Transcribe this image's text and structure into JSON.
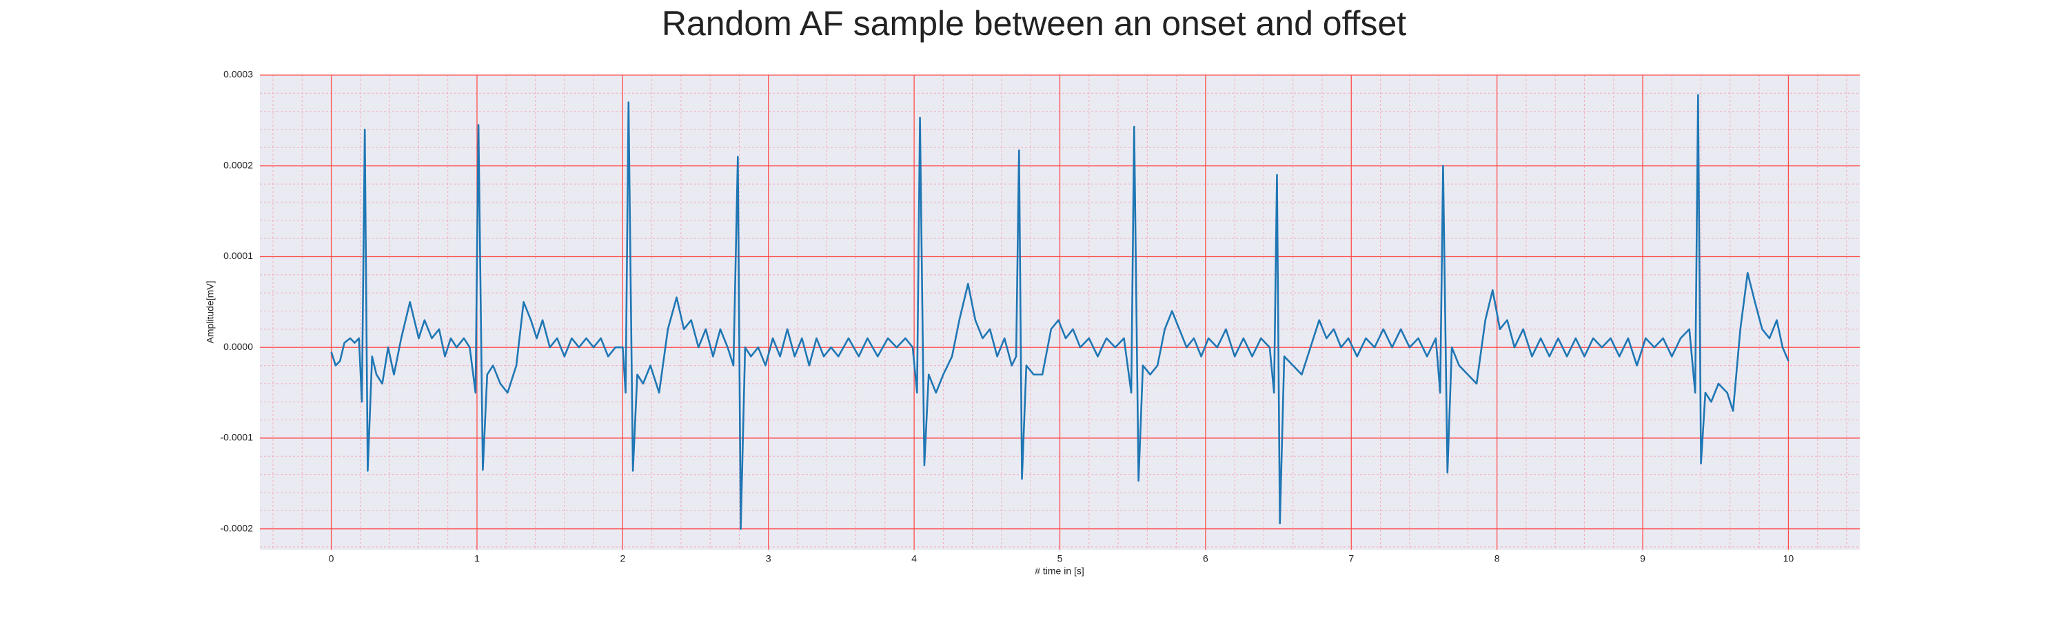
{
  "chart_data": {
    "type": "line",
    "title": "Random AF sample between an onset and offset",
    "xlabel": "# time in [s]",
    "ylabel": "Amplitude[mV]",
    "color": "#1f77b4",
    "background": "#eaeaf2",
    "grid": true,
    "grid_color": "#ff4d4d",
    "minor_grid": true,
    "minor_grid_color": "#f4a0b0",
    "xlim": [
      -0.49,
      10.49
    ],
    "xticks": [
      0,
      1,
      2,
      3,
      4,
      5,
      6,
      7,
      8,
      9,
      10
    ],
    "ylim": [
      -0.000223,
      0.0003
    ],
    "yticks": [
      -0.0002,
      -0.0001,
      {
        "value": 0,
        "label": "0.0000"
      },
      0.0001,
      0.0002,
      0.0003
    ],
    "x": [
      0.0,
      0.03,
      0.06,
      0.09,
      0.13,
      0.16,
      0.19,
      0.21,
      0.23,
      0.25,
      0.28,
      0.31,
      0.35,
      0.39,
      0.43,
      0.48,
      0.54,
      0.6,
      0.64,
      0.69,
      0.74,
      0.78,
      0.82,
      0.86,
      0.91,
      0.95,
      0.99,
      1.01,
      1.04,
      1.07,
      1.11,
      1.16,
      1.21,
      1.27,
      1.32,
      1.37,
      1.41,
      1.45,
      1.5,
      1.55,
      1.6,
      1.65,
      1.7,
      1.75,
      1.8,
      1.85,
      1.9,
      1.95,
      2.0,
      2.02,
      2.04,
      2.07,
      2.1,
      2.14,
      2.19,
      2.25,
      2.31,
      2.37,
      2.42,
      2.47,
      2.52,
      2.57,
      2.62,
      2.67,
      2.72,
      2.76,
      2.79,
      2.81,
      2.84,
      2.88,
      2.93,
      2.98,
      3.03,
      3.08,
      3.13,
      3.18,
      3.23,
      3.28,
      3.33,
      3.38,
      3.43,
      3.48,
      3.55,
      3.62,
      3.68,
      3.75,
      3.82,
      3.88,
      3.94,
      3.99,
      4.02,
      4.04,
      4.07,
      4.1,
      4.15,
      4.2,
      4.26,
      4.31,
      4.37,
      4.42,
      4.47,
      4.52,
      4.57,
      4.62,
      4.67,
      4.7,
      4.72,
      4.74,
      4.77,
      4.82,
      4.88,
      4.94,
      4.99,
      5.04,
      5.09,
      5.14,
      5.2,
      5.26,
      5.32,
      5.38,
      5.44,
      5.49,
      5.51,
      5.54,
      5.57,
      5.62,
      5.67,
      5.72,
      5.77,
      5.82,
      5.87,
      5.92,
      5.97,
      6.02,
      6.08,
      6.14,
      6.2,
      6.26,
      6.32,
      6.38,
      6.44,
      6.47,
      6.49,
      6.51,
      6.54,
      6.6,
      6.66,
      6.72,
      6.78,
      6.83,
      6.88,
      6.93,
      6.98,
      7.04,
      7.1,
      7.16,
      7.22,
      7.28,
      7.34,
      7.4,
      7.46,
      7.52,
      7.58,
      7.61,
      7.63,
      7.66,
      7.69,
      7.74,
      7.8,
      7.86,
      7.92,
      7.97,
      8.02,
      8.07,
      8.12,
      8.18,
      8.24,
      8.3,
      8.36,
      8.42,
      8.48,
      8.54,
      8.6,
      8.66,
      8.72,
      8.78,
      8.84,
      8.9,
      8.96,
      9.02,
      9.08,
      9.14,
      9.2,
      9.26,
      9.32,
      9.36,
      9.38,
      9.4,
      9.43,
      9.47,
      9.52,
      9.58,
      9.62,
      9.67,
      9.72,
      9.77,
      9.82,
      9.87,
      9.92,
      9.96,
      10.0
    ],
    "values": [
      -5e-06,
      -2e-05,
      -1.5e-05,
      5e-06,
      1e-05,
      5e-06,
      1e-05,
      -6e-05,
      0.00024,
      -0.000136,
      -1e-05,
      -3e-05,
      -4e-05,
      0.0,
      -3e-05,
      1e-05,
      5e-05,
      1e-05,
      3e-05,
      1e-05,
      2e-05,
      -1e-05,
      1e-05,
      0.0,
      1e-05,
      0.0,
      -5e-05,
      0.000245,
      -0.000135,
      -3e-05,
      -2e-05,
      -4e-05,
      -5e-05,
      -2e-05,
      5e-05,
      3e-05,
      1e-05,
      3e-05,
      0.0,
      1e-05,
      -1e-05,
      1e-05,
      0.0,
      1e-05,
      0.0,
      1e-05,
      -1e-05,
      0.0,
      0.0,
      -5e-05,
      0.00027,
      -0.000136,
      -3e-05,
      -4e-05,
      -2e-05,
      -5e-05,
      2e-05,
      5.5e-05,
      2e-05,
      3e-05,
      0.0,
      2e-05,
      -1e-05,
      2e-05,
      0.0,
      -2e-05,
      0.00021,
      -0.0002,
      0.0,
      -1e-05,
      0.0,
      -2e-05,
      1e-05,
      -1e-05,
      2e-05,
      -1e-05,
      1e-05,
      -2e-05,
      1e-05,
      -1e-05,
      0.0,
      -1e-05,
      1e-05,
      -1e-05,
      1e-05,
      -1e-05,
      1e-05,
      0.0,
      1e-05,
      0.0,
      -5e-05,
      0.000253,
      -0.00013,
      -3e-05,
      -5e-05,
      -3e-05,
      -1e-05,
      3e-05,
      7e-05,
      3e-05,
      1e-05,
      2e-05,
      -1e-05,
      1e-05,
      -2e-05,
      -1e-05,
      0.000217,
      -0.000145,
      -2e-05,
      -3e-05,
      -3e-05,
      2e-05,
      3e-05,
      1e-05,
      2e-05,
      0.0,
      1e-05,
      -1e-05,
      1e-05,
      0.0,
      1e-05,
      -5e-05,
      0.000243,
      -0.000147,
      -2e-05,
      -3e-05,
      -2e-05,
      2e-05,
      4e-05,
      2e-05,
      0.0,
      1e-05,
      -1e-05,
      1e-05,
      0.0,
      2e-05,
      -1e-05,
      1e-05,
      -1e-05,
      1e-05,
      0.0,
      -5e-05,
      0.00019,
      -0.000194,
      -1e-05,
      -2e-05,
      -3e-05,
      0.0,
      3e-05,
      1e-05,
      2e-05,
      0.0,
      1e-05,
      -1e-05,
      1e-05,
      0.0,
      2e-05,
      0.0,
      2e-05,
      0.0,
      1e-05,
      -1e-05,
      1e-05,
      -5e-05,
      0.0002,
      -0.000138,
      0.0,
      -2e-05,
      -3e-05,
      -4e-05,
      3e-05,
      6.3e-05,
      2e-05,
      3e-05,
      0.0,
      2e-05,
      -1e-05,
      1e-05,
      -1e-05,
      1e-05,
      -1e-05,
      1e-05,
      -1e-05,
      1e-05,
      0.0,
      1e-05,
      -1e-05,
      1e-05,
      -2e-05,
      1e-05,
      0.0,
      1e-05,
      -1e-05,
      1e-05,
      2e-05,
      -5e-05,
      0.000278,
      -0.000128,
      -5e-05,
      -6e-05,
      -4e-05,
      -5e-05,
      -7e-05,
      2e-05,
      8.2e-05,
      5e-05,
      2e-05,
      1e-05,
      3e-05,
      0.0,
      -1.5e-05
    ]
  }
}
